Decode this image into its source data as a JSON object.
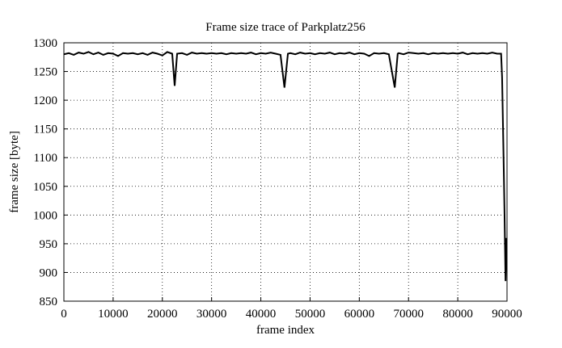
{
  "chart_data": {
    "type": "line",
    "title": "Frame size trace of Parkplatz256",
    "x_label": "frame index",
    "y_label": "frame size [byte]",
    "color": "#000000",
    "grid": true,
    "xlim": [
      0,
      90000
    ],
    "ylim": [
      850,
      1300
    ],
    "xticks": [
      0,
      10000,
      20000,
      30000,
      40000,
      50000,
      60000,
      70000,
      80000,
      90000
    ],
    "yticks": [
      850,
      900,
      950,
      1000,
      1050,
      1100,
      1150,
      1200,
      1250,
      1300
    ],
    "x": [
      0,
      1000,
      2000,
      3000,
      4000,
      5000,
      6000,
      7000,
      8000,
      9000,
      10000,
      11000,
      12000,
      13000,
      14000,
      15000,
      16000,
      17000,
      18000,
      19000,
      20000,
      21000,
      22000,
      22500,
      23000,
      24000,
      25000,
      26000,
      27000,
      28000,
      29000,
      30000,
      31000,
      32000,
      33000,
      34000,
      35000,
      36000,
      37000,
      38000,
      39000,
      40000,
      41000,
      42000,
      43000,
      44000,
      44800,
      45500,
      46000,
      47000,
      48000,
      49000,
      50000,
      51000,
      52000,
      53000,
      54000,
      55000,
      56000,
      57000,
      58000,
      59000,
      60000,
      61000,
      62000,
      63000,
      64000,
      65000,
      66000,
      67200,
      67800,
      68000,
      69000,
      70000,
      71000,
      72000,
      73000,
      74000,
      75000,
      76000,
      77000,
      78000,
      79000,
      80000,
      81000,
      82000,
      83000,
      84000,
      85000,
      86000,
      87000,
      88000,
      88800,
      89000,
      89300,
      89500,
      89700,
      89900
    ],
    "values": [
      1280,
      1282,
      1279,
      1283,
      1281,
      1284,
      1280,
      1283,
      1279,
      1282,
      1281,
      1277,
      1282,
      1281,
      1282,
      1280,
      1282,
      1279,
      1283,
      1281,
      1278,
      1284,
      1281,
      1225,
      1281,
      1282,
      1279,
      1283,
      1281,
      1282,
      1281,
      1282,
      1281,
      1282,
      1280,
      1282,
      1281,
      1282,
      1281,
      1283,
      1280,
      1282,
      1281,
      1283,
      1281,
      1279,
      1222,
      1281,
      1282,
      1280,
      1283,
      1281,
      1282,
      1280,
      1282,
      1281,
      1283,
      1280,
      1282,
      1281,
      1283,
      1280,
      1282,
      1281,
      1277,
      1282,
      1281,
      1282,
      1280,
      1222,
      1281,
      1282,
      1280,
      1283,
      1282,
      1281,
      1282,
      1280,
      1282,
      1281,
      1282,
      1281,
      1282,
      1281,
      1283,
      1280,
      1282,
      1281,
      1282,
      1281,
      1283,
      1281,
      1281,
      1240,
      1100,
      1000,
      885,
      960
    ]
  }
}
